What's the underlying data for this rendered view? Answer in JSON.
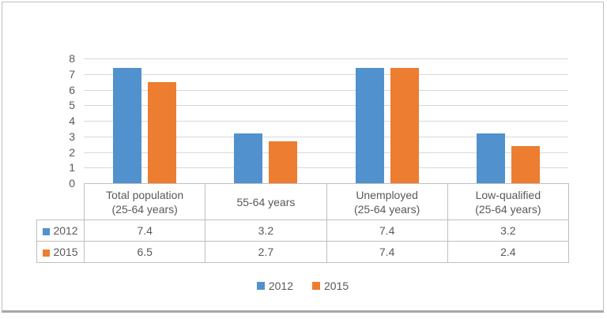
{
  "chart_data": {
    "type": "bar",
    "title": "",
    "xlabel": "",
    "ylabel": "",
    "categories": [
      "Total population (25-64 years)",
      "55-64 years",
      "Unemployed (25-64 years)",
      "Low-qualified (25-64 years)"
    ],
    "category_label_lines": [
      [
        "Total population",
        "(25-64 years)"
      ],
      [
        "55-64 years"
      ],
      [
        "Unemployed",
        "(25-64 years)"
      ],
      [
        "Low-qualified",
        "(25-64 years)"
      ]
    ],
    "series": [
      {
        "name": "2012",
        "color": "#5191CE",
        "values": [
          7.4,
          3.2,
          7.4,
          3.2
        ]
      },
      {
        "name": "2015",
        "color": "#ED7D31",
        "values": [
          6.5,
          2.7,
          7.4,
          2.4
        ]
      }
    ],
    "ylim": [
      0,
      8
    ],
    "yticks": [
      0,
      1,
      2,
      3,
      4,
      5,
      6,
      7,
      8
    ],
    "grid": true,
    "legend_position": "bottom",
    "show_data_table": true
  },
  "style": {
    "gridline_color": "#d9d9d9",
    "table_border_color": "#bfbfbf",
    "text_color": "#595959",
    "blue": "#5191CE",
    "orange": "#ED7D31"
  }
}
